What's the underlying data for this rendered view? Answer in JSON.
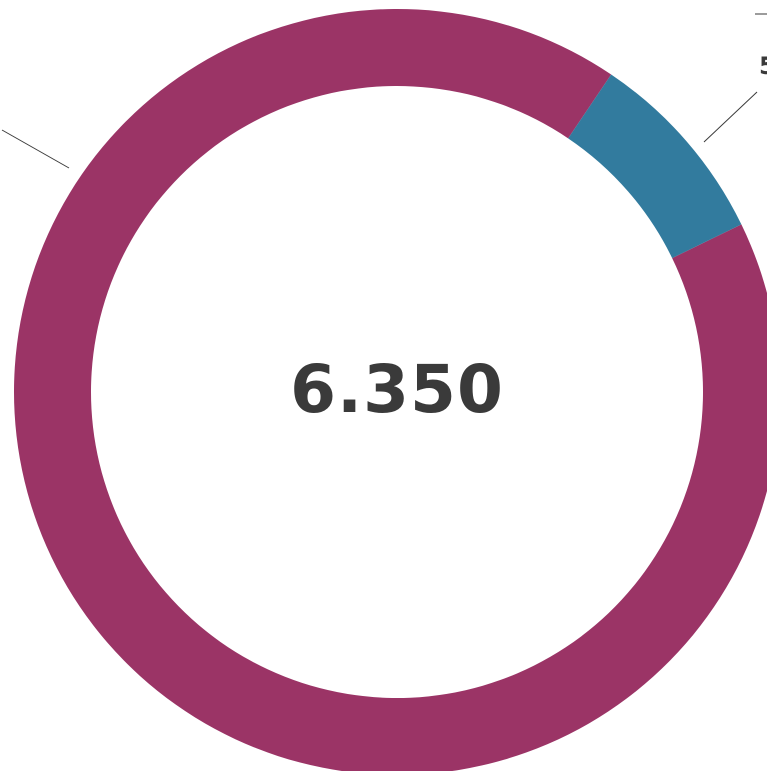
{
  "chart_data": {
    "type": "pie",
    "donut": true,
    "center_label": "6.350",
    "slices": [
      {
        "value": 5820,
        "color": "#9b3466"
      },
      {
        "value": 530,
        "color": "#327b9e"
      }
    ],
    "callouts": [
      {
        "text": "5",
        "slice": 1
      }
    ]
  }
}
